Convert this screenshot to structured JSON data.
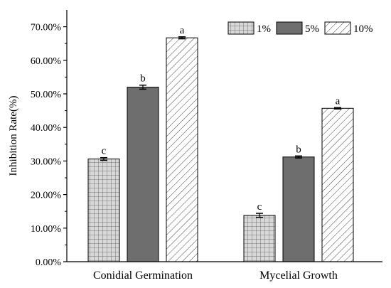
{
  "chart_data": {
    "type": "bar",
    "categories": [
      "Conidial Germination",
      "Mycelial Growth"
    ],
    "series": [
      {
        "name": "1%",
        "values": [
          30.6,
          13.8
        ],
        "errors": [
          0.4,
          0.6
        ],
        "letters": [
          "c",
          "c"
        ],
        "pattern": "grid",
        "color": "#cfcfcf"
      },
      {
        "name": "5%",
        "values": [
          52.0,
          31.2
        ],
        "errors": [
          0.6,
          0.3
        ],
        "letters": [
          "b",
          "b"
        ],
        "pattern": "solid",
        "color": "#6e6e6e"
      },
      {
        "name": "10%",
        "values": [
          66.7,
          45.7
        ],
        "errors": [
          0.3,
          0.2
        ],
        "letters": [
          "a",
          "a"
        ],
        "pattern": "diagonal",
        "color": "#ffffff"
      }
    ],
    "ylabel": "Inhibition Rate(%)",
    "xlabel": "",
    "ylim": [
      0,
      75
    ],
    "yticks": [
      "0.00%",
      "10.00%",
      "20.00%",
      "30.00%",
      "40.00%",
      "50.00%",
      "60.00%",
      "70.00%"
    ],
    "ytick_values": [
      0,
      10,
      20,
      30,
      40,
      50,
      60,
      70
    ],
    "grid": false,
    "legend": "top-right"
  }
}
